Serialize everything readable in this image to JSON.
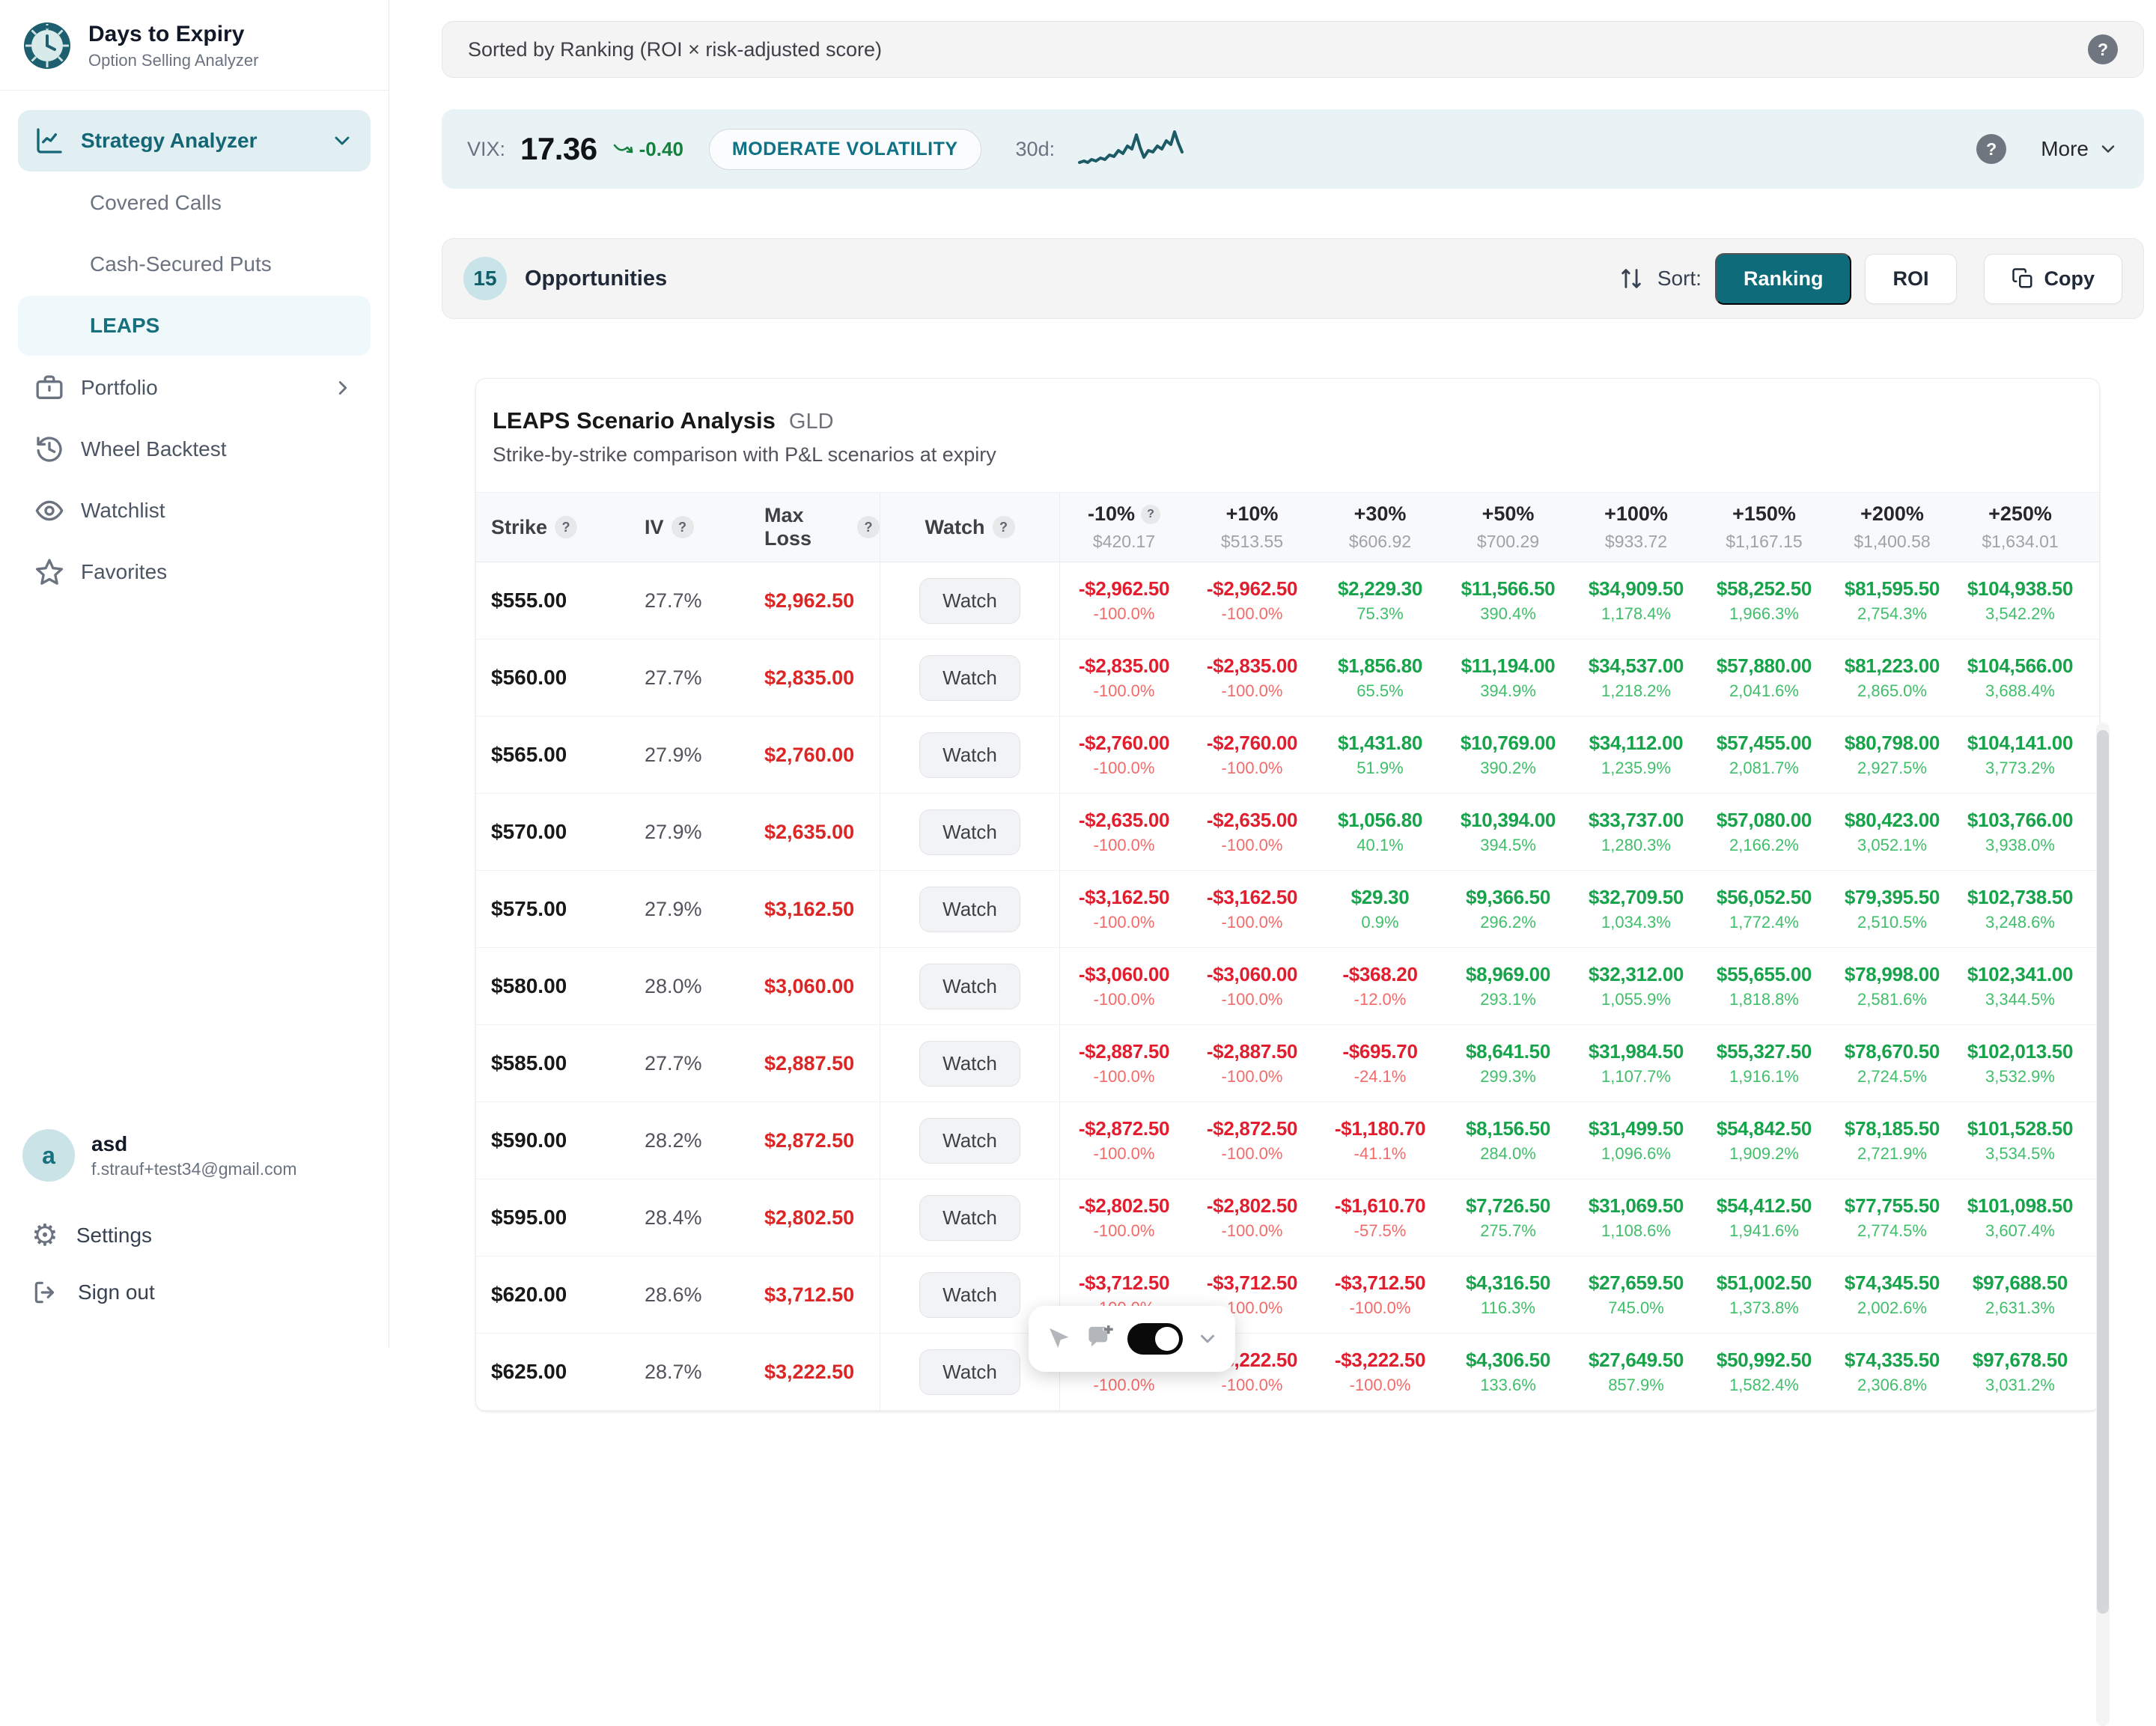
{
  "app": {
    "title": "Days to Expiry",
    "subtitle": "Option Selling Analyzer"
  },
  "sidebar": {
    "nav": {
      "strategy_analyzer": "Strategy Analyzer",
      "covered_calls": "Covered Calls",
      "cash_secured_puts": "Cash-Secured Puts",
      "leaps": "LEAPS",
      "portfolio": "Portfolio",
      "wheel_backtest": "Wheel Backtest",
      "watchlist": "Watchlist",
      "favorites": "Favorites"
    },
    "user": {
      "initial": "a",
      "name": "asd",
      "email": "f.strauf+test34@gmail.com"
    },
    "settings_label": "Settings",
    "signout_label": "Sign out"
  },
  "topbar": {
    "sort_text": "Sorted by Ranking (ROI × risk-adjusted score)"
  },
  "vix": {
    "label": "VIX:",
    "value": "17.36",
    "change": "-0.40",
    "badge": "MODERATE VOLATILITY",
    "period_label": "30d:",
    "more_label": "More"
  },
  "opportunities": {
    "count": "15",
    "label": "Opportunities",
    "sort_caption": "Sort:",
    "ranking_label": "Ranking",
    "roi_label": "ROI",
    "copy_label": "Copy"
  },
  "table": {
    "title": "LEAPS Scenario Analysis",
    "ticker": "GLD",
    "subtitle": "Strike-by-strike comparison with P&L scenarios at expiry",
    "columns": {
      "strike": "Strike",
      "iv": "IV",
      "max_loss": "Max Loss",
      "watch": "Watch"
    },
    "watch_button_label": "Watch",
    "scenario_columns": [
      {
        "label": "-10%",
        "price": "$420.17",
        "has_help": true
      },
      {
        "label": "+10%",
        "price": "$513.55",
        "has_help": false
      },
      {
        "label": "+30%",
        "price": "$606.92",
        "has_help": false
      },
      {
        "label": "+50%",
        "price": "$700.29",
        "has_help": false
      },
      {
        "label": "+100%",
        "price": "$933.72",
        "has_help": false
      },
      {
        "label": "+150%",
        "price": "$1,167.15",
        "has_help": false
      },
      {
        "label": "+200%",
        "price": "$1,400.58",
        "has_help": false
      },
      {
        "label": "+250%",
        "price": "$1,634.01",
        "has_help": false
      }
    ],
    "rows": [
      {
        "strike": "$555.00",
        "iv": "27.7%",
        "max_loss": "$2,962.50",
        "scenarios": [
          {
            "v": "-$2,962.50",
            "p": "-100.0%",
            "neg": true
          },
          {
            "v": "-$2,962.50",
            "p": "-100.0%",
            "neg": true
          },
          {
            "v": "$2,229.30",
            "p": "75.3%",
            "neg": false
          },
          {
            "v": "$11,566.50",
            "p": "390.4%",
            "neg": false
          },
          {
            "v": "$34,909.50",
            "p": "1,178.4%",
            "neg": false
          },
          {
            "v": "$58,252.50",
            "p": "1,966.3%",
            "neg": false
          },
          {
            "v": "$81,595.50",
            "p": "2,754.3%",
            "neg": false
          },
          {
            "v": "$104,938.50",
            "p": "3,542.2%",
            "neg": false
          }
        ]
      },
      {
        "strike": "$560.00",
        "iv": "27.7%",
        "max_loss": "$2,835.00",
        "scenarios": [
          {
            "v": "-$2,835.00",
            "p": "-100.0%",
            "neg": true
          },
          {
            "v": "-$2,835.00",
            "p": "-100.0%",
            "neg": true
          },
          {
            "v": "$1,856.80",
            "p": "65.5%",
            "neg": false
          },
          {
            "v": "$11,194.00",
            "p": "394.9%",
            "neg": false
          },
          {
            "v": "$34,537.00",
            "p": "1,218.2%",
            "neg": false
          },
          {
            "v": "$57,880.00",
            "p": "2,041.6%",
            "neg": false
          },
          {
            "v": "$81,223.00",
            "p": "2,865.0%",
            "neg": false
          },
          {
            "v": "$104,566.00",
            "p": "3,688.4%",
            "neg": false
          }
        ]
      },
      {
        "strike": "$565.00",
        "iv": "27.9%",
        "max_loss": "$2,760.00",
        "scenarios": [
          {
            "v": "-$2,760.00",
            "p": "-100.0%",
            "neg": true
          },
          {
            "v": "-$2,760.00",
            "p": "-100.0%",
            "neg": true
          },
          {
            "v": "$1,431.80",
            "p": "51.9%",
            "neg": false
          },
          {
            "v": "$10,769.00",
            "p": "390.2%",
            "neg": false
          },
          {
            "v": "$34,112.00",
            "p": "1,235.9%",
            "neg": false
          },
          {
            "v": "$57,455.00",
            "p": "2,081.7%",
            "neg": false
          },
          {
            "v": "$80,798.00",
            "p": "2,927.5%",
            "neg": false
          },
          {
            "v": "$104,141.00",
            "p": "3,773.2%",
            "neg": false
          }
        ]
      },
      {
        "strike": "$570.00",
        "iv": "27.9%",
        "max_loss": "$2,635.00",
        "scenarios": [
          {
            "v": "-$2,635.00",
            "p": "-100.0%",
            "neg": true
          },
          {
            "v": "-$2,635.00",
            "p": "-100.0%",
            "neg": true
          },
          {
            "v": "$1,056.80",
            "p": "40.1%",
            "neg": false
          },
          {
            "v": "$10,394.00",
            "p": "394.5%",
            "neg": false
          },
          {
            "v": "$33,737.00",
            "p": "1,280.3%",
            "neg": false
          },
          {
            "v": "$57,080.00",
            "p": "2,166.2%",
            "neg": false
          },
          {
            "v": "$80,423.00",
            "p": "3,052.1%",
            "neg": false
          },
          {
            "v": "$103,766.00",
            "p": "3,938.0%",
            "neg": false
          }
        ]
      },
      {
        "strike": "$575.00",
        "iv": "27.9%",
        "max_loss": "$3,162.50",
        "scenarios": [
          {
            "v": "-$3,162.50",
            "p": "-100.0%",
            "neg": true
          },
          {
            "v": "-$3,162.50",
            "p": "-100.0%",
            "neg": true
          },
          {
            "v": "$29.30",
            "p": "0.9%",
            "neg": false
          },
          {
            "v": "$9,366.50",
            "p": "296.2%",
            "neg": false
          },
          {
            "v": "$32,709.50",
            "p": "1,034.3%",
            "neg": false
          },
          {
            "v": "$56,052.50",
            "p": "1,772.4%",
            "neg": false
          },
          {
            "v": "$79,395.50",
            "p": "2,510.5%",
            "neg": false
          },
          {
            "v": "$102,738.50",
            "p": "3,248.6%",
            "neg": false
          }
        ]
      },
      {
        "strike": "$580.00",
        "iv": "28.0%",
        "max_loss": "$3,060.00",
        "scenarios": [
          {
            "v": "-$3,060.00",
            "p": "-100.0%",
            "neg": true
          },
          {
            "v": "-$3,060.00",
            "p": "-100.0%",
            "neg": true
          },
          {
            "v": "-$368.20",
            "p": "-12.0%",
            "neg": true
          },
          {
            "v": "$8,969.00",
            "p": "293.1%",
            "neg": false
          },
          {
            "v": "$32,312.00",
            "p": "1,055.9%",
            "neg": false
          },
          {
            "v": "$55,655.00",
            "p": "1,818.8%",
            "neg": false
          },
          {
            "v": "$78,998.00",
            "p": "2,581.6%",
            "neg": false
          },
          {
            "v": "$102,341.00",
            "p": "3,344.5%",
            "neg": false
          }
        ]
      },
      {
        "strike": "$585.00",
        "iv": "27.7%",
        "max_loss": "$2,887.50",
        "scenarios": [
          {
            "v": "-$2,887.50",
            "p": "-100.0%",
            "neg": true
          },
          {
            "v": "-$2,887.50",
            "p": "-100.0%",
            "neg": true
          },
          {
            "v": "-$695.70",
            "p": "-24.1%",
            "neg": true
          },
          {
            "v": "$8,641.50",
            "p": "299.3%",
            "neg": false
          },
          {
            "v": "$31,984.50",
            "p": "1,107.7%",
            "neg": false
          },
          {
            "v": "$55,327.50",
            "p": "1,916.1%",
            "neg": false
          },
          {
            "v": "$78,670.50",
            "p": "2,724.5%",
            "neg": false
          },
          {
            "v": "$102,013.50",
            "p": "3,532.9%",
            "neg": false
          }
        ]
      },
      {
        "strike": "$590.00",
        "iv": "28.2%",
        "max_loss": "$2,872.50",
        "scenarios": [
          {
            "v": "-$2,872.50",
            "p": "-100.0%",
            "neg": true
          },
          {
            "v": "-$2,872.50",
            "p": "-100.0%",
            "neg": true
          },
          {
            "v": "-$1,180.70",
            "p": "-41.1%",
            "neg": true
          },
          {
            "v": "$8,156.50",
            "p": "284.0%",
            "neg": false
          },
          {
            "v": "$31,499.50",
            "p": "1,096.6%",
            "neg": false
          },
          {
            "v": "$54,842.50",
            "p": "1,909.2%",
            "neg": false
          },
          {
            "v": "$78,185.50",
            "p": "2,721.9%",
            "neg": false
          },
          {
            "v": "$101,528.50",
            "p": "3,534.5%",
            "neg": false
          }
        ]
      },
      {
        "strike": "$595.00",
        "iv": "28.4%",
        "max_loss": "$2,802.50",
        "scenarios": [
          {
            "v": "-$2,802.50",
            "p": "-100.0%",
            "neg": true
          },
          {
            "v": "-$2,802.50",
            "p": "-100.0%",
            "neg": true
          },
          {
            "v": "-$1,610.70",
            "p": "-57.5%",
            "neg": true
          },
          {
            "v": "$7,726.50",
            "p": "275.7%",
            "neg": false
          },
          {
            "v": "$31,069.50",
            "p": "1,108.6%",
            "neg": false
          },
          {
            "v": "$54,412.50",
            "p": "1,941.6%",
            "neg": false
          },
          {
            "v": "$77,755.50",
            "p": "2,774.5%",
            "neg": false
          },
          {
            "v": "$101,098.50",
            "p": "3,607.4%",
            "neg": false
          }
        ]
      },
      {
        "strike": "$620.00",
        "iv": "28.6%",
        "max_loss": "$3,712.50",
        "scenarios": [
          {
            "v": "-$3,712.50",
            "p": "-100.0%",
            "neg": true
          },
          {
            "v": "-$3,712.50",
            "p": "-100.0%",
            "neg": true
          },
          {
            "v": "-$3,712.50",
            "p": "-100.0%",
            "neg": true
          },
          {
            "v": "$4,316.50",
            "p": "116.3%",
            "neg": false
          },
          {
            "v": "$27,659.50",
            "p": "745.0%",
            "neg": false
          },
          {
            "v": "$51,002.50",
            "p": "1,373.8%",
            "neg": false
          },
          {
            "v": "$74,345.50",
            "p": "2,002.6%",
            "neg": false
          },
          {
            "v": "$97,688.50",
            "p": "2,631.3%",
            "neg": false
          }
        ]
      },
      {
        "strike": "$625.00",
        "iv": "28.7%",
        "max_loss": "$3,222.50",
        "scenarios": [
          {
            "v": "-$3,222.50",
            "p": "-100.0%",
            "neg": true
          },
          {
            "v": "-$3,222.50",
            "p": "-100.0%",
            "neg": true
          },
          {
            "v": "-$3,222.50",
            "p": "-100.0%",
            "neg": true
          },
          {
            "v": "$4,306.50",
            "p": "133.6%",
            "neg": false
          },
          {
            "v": "$27,649.50",
            "p": "857.9%",
            "neg": false
          },
          {
            "v": "$50,992.50",
            "p": "1,582.4%",
            "neg": false
          },
          {
            "v": "$74,335.50",
            "p": "2,306.8%",
            "neg": false
          },
          {
            "v": "$97,678.50",
            "p": "3,031.2%",
            "neg": false
          }
        ]
      }
    ]
  },
  "icons": {
    "help_glyph": "?",
    "logo": "clock-icon",
    "trend": "trend-down-arrow-icon",
    "toolbar": [
      "mouse-pointer-icon",
      "comment-plus-icon",
      "toggle-switch",
      "chevron-down-icon"
    ]
  },
  "colors": {
    "accent_teal": "#0e6b7a",
    "teal_light_bg": "#e2eff2",
    "vix_bar_bg": "#e9f2f5",
    "positive_value": "#16a34a",
    "positive_pct": "#3fbf69",
    "negative_value": "#e11d2e",
    "negative_pct": "#f26a6a",
    "max_loss_red": "#dc2626"
  }
}
